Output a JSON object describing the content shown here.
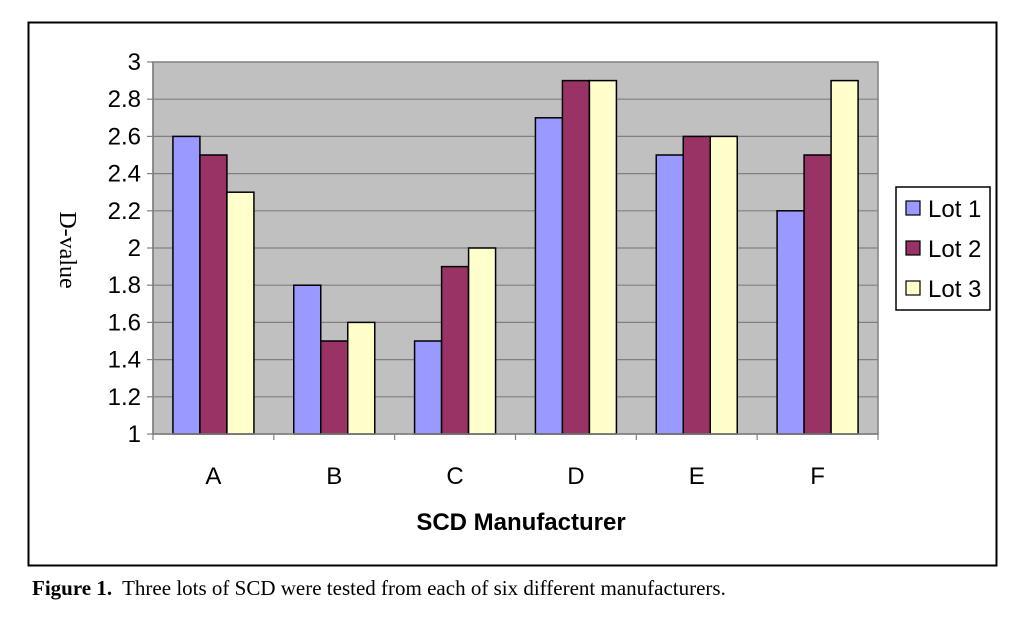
{
  "chart_data": {
    "type": "bar",
    "categories": [
      "A",
      "B",
      "C",
      "D",
      "E",
      "F"
    ],
    "series": [
      {
        "name": "Lot 1",
        "color": "#9999FF",
        "values": [
          2.6,
          1.8,
          1.5,
          2.7,
          2.5,
          2.2
        ]
      },
      {
        "name": "Lot 2",
        "color": "#993366",
        "values": [
          2.5,
          1.5,
          1.9,
          2.9,
          2.6,
          2.5
        ]
      },
      {
        "name": "Lot 3",
        "color": "#FFFFCC",
        "values": [
          2.3,
          1.6,
          2.0,
          2.9,
          2.6,
          2.9
        ]
      }
    ],
    "title": "",
    "xlabel": "SCD Manufacturer",
    "ylabel": "D-value",
    "ylim": [
      1,
      3
    ],
    "yticks": [
      "1",
      "1.2",
      "1.4",
      "1.6",
      "1.8",
      "2",
      "2.2",
      "2.4",
      "2.6",
      "2.8",
      "3"
    ],
    "grid": true,
    "plot_background": "#C0C0C0",
    "legend": "right"
  },
  "caption": {
    "label": "Figure 1.",
    "text": "Three lots of SCD were tested from each of six different manufacturers."
  }
}
